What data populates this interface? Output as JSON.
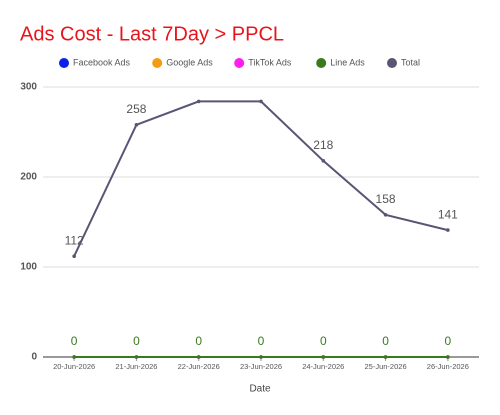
{
  "chart_data": {
    "type": "line",
    "title": "Ads Cost - Last 7Day > PPCL",
    "x_label": "Date",
    "categories": [
      "20-Jun-2026",
      "21-Jun-2026",
      "22-Jun-2026",
      "23-Jun-2026",
      "24-Jun-2026",
      "25-Jun-2026",
      "26-Jun-2026"
    ],
    "series": [
      {
        "name": "Facebook Ads",
        "color": "#0b21e8",
        "values": [
          0,
          0,
          0,
          0,
          0,
          0,
          0
        ]
      },
      {
        "name": "Google Ads",
        "color": "#f39c12",
        "values": [
          0,
          0,
          0,
          0,
          0,
          0,
          0
        ]
      },
      {
        "name": "TikTok Ads",
        "color": "#ff1ef0",
        "values": [
          0,
          0,
          0,
          0,
          0,
          0,
          0
        ]
      },
      {
        "name": "Line Ads",
        "color": "#3a7a1e",
        "values": [
          0,
          0,
          0,
          0,
          0,
          0,
          0
        ],
        "value_labels": [
          "0",
          "0",
          "0",
          "0",
          "0",
          "0",
          "0"
        ]
      },
      {
        "name": "Total",
        "color": "#5a5475",
        "values": [
          112,
          258,
          284,
          284,
          218,
          158,
          141
        ],
        "value_labels": [
          "112",
          "258",
          null,
          null,
          "218",
          "158",
          "141"
        ]
      }
    ],
    "ylim": [
      0,
      300
    ],
    "yticks": [
      0,
      100,
      200,
      300
    ],
    "grid": true
  }
}
